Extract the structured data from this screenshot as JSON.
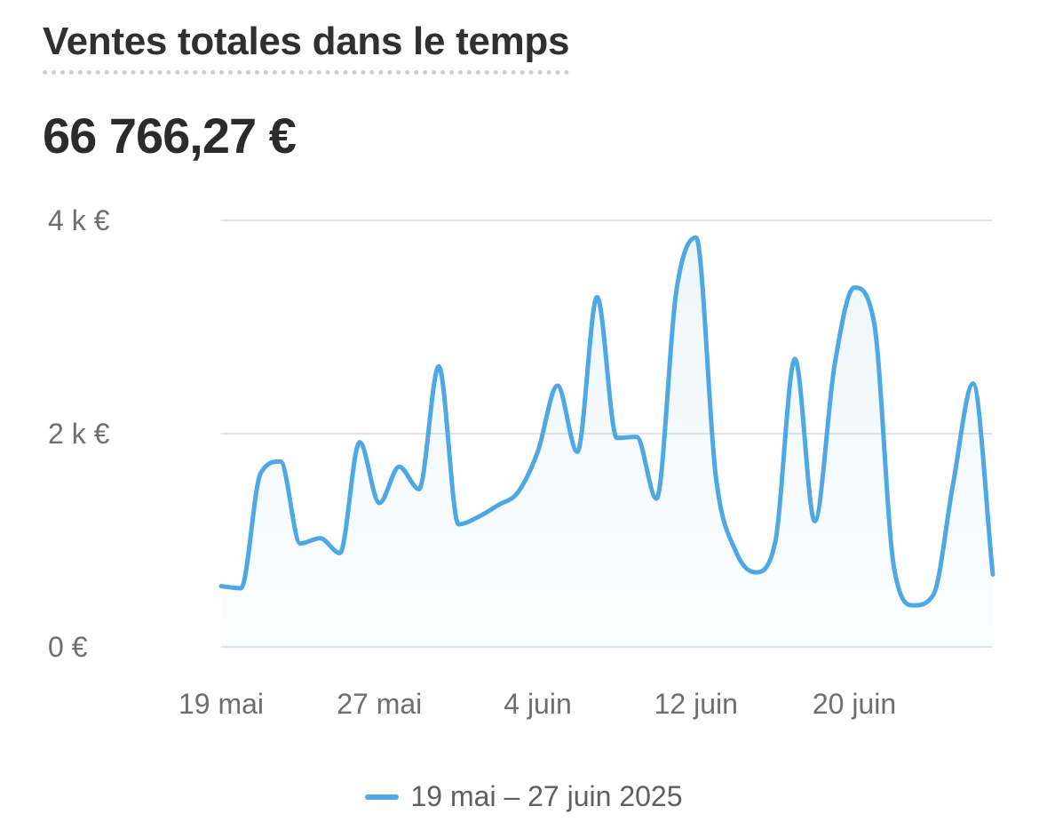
{
  "card": {
    "title": "Ventes totales dans le temps",
    "total": "66 766,27 €"
  },
  "colors": {
    "series": "#4ea8e3",
    "grid": "#e4e4e4",
    "axis_text": "#6e6e6e"
  },
  "legend": {
    "label": "19 mai – 27 juin 2025"
  },
  "chart_data": {
    "type": "area",
    "title": "Ventes totales dans le temps",
    "xlabel": "",
    "ylabel": "",
    "ylim": [
      0,
      4000
    ],
    "yticks": [
      0,
      2000,
      4000
    ],
    "ytick_labels": [
      "0 €",
      "2 k €",
      "4 k €"
    ],
    "xtick_labels": [
      "19 mai",
      "27 mai",
      "4 juin",
      "12 juin",
      "20 juin"
    ],
    "xtick_dates": [
      "2025-05-19",
      "2025-05-27",
      "2025-06-04",
      "2025-06-12",
      "2025-06-20"
    ],
    "grid": true,
    "legend_position": "bottom-center",
    "series": [
      {
        "name": "19 mai – 27 juin 2025",
        "x": [
          "2025-05-19",
          "2025-05-20",
          "2025-05-21",
          "2025-05-22",
          "2025-05-23",
          "2025-05-24",
          "2025-05-25",
          "2025-05-26",
          "2025-05-27",
          "2025-05-28",
          "2025-05-29",
          "2025-05-30",
          "2025-05-31",
          "2025-06-01",
          "2025-06-02",
          "2025-06-03",
          "2025-06-04",
          "2025-06-05",
          "2025-06-06",
          "2025-06-07",
          "2025-06-08",
          "2025-06-09",
          "2025-06-10",
          "2025-06-11",
          "2025-06-12",
          "2025-06-13",
          "2025-06-14",
          "2025-06-15",
          "2025-06-16",
          "2025-06-17",
          "2025-06-18",
          "2025-06-19",
          "2025-06-20",
          "2025-06-21",
          "2025-06-22",
          "2025-06-23",
          "2025-06-24",
          "2025-06-25",
          "2025-06-26",
          "2025-06-27"
        ],
        "values": [
          570,
          550,
          1630,
          1740,
          970,
          1020,
          880,
          1920,
          1350,
          1690,
          1480,
          2630,
          1150,
          1220,
          1330,
          1450,
          1830,
          2450,
          1830,
          3280,
          1960,
          1970,
          1390,
          3330,
          3840,
          1600,
          900,
          700,
          980,
          2700,
          1180,
          2640,
          3370,
          3040,
          750,
          390,
          490,
          1540,
          2470,
          680
        ]
      }
    ]
  }
}
